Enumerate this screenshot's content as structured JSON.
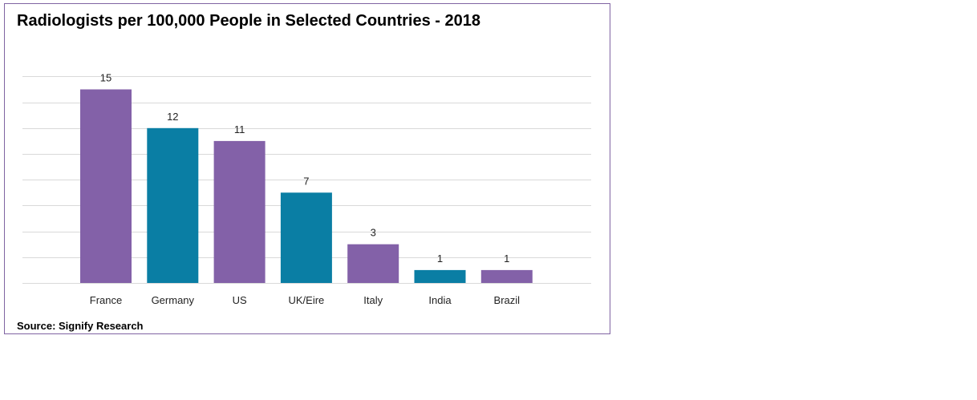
{
  "chart_data": {
    "type": "bar",
    "title": "Radiologists per 100,000 People in Selected Countries - 2018",
    "source": "Source: Signify Research",
    "categories": [
      "France",
      "Germany",
      "US",
      "UK/Eire",
      "Italy",
      "India",
      "Brazil"
    ],
    "values": [
      15,
      12,
      11,
      7,
      3,
      1,
      1
    ],
    "data_labels": [
      "15",
      "12",
      "11",
      "7",
      "3",
      "1",
      "1"
    ],
    "bar_colors": [
      "#8361a8",
      "#0a7ea4",
      "#8361a8",
      "#0a7ea4",
      "#8361a8",
      "#0a7ea4",
      "#8361a8"
    ],
    "ylim": [
      0,
      16
    ],
    "grid": true,
    "legend": "none"
  }
}
